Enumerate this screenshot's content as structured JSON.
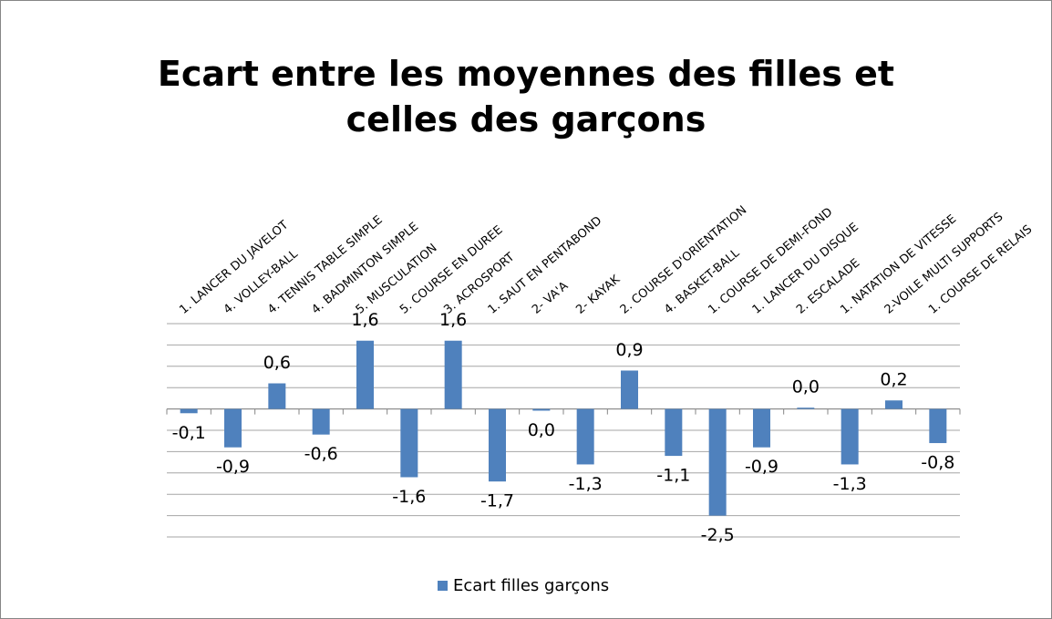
{
  "chart_data": {
    "type": "bar",
    "title": "Ecart entre les moyennes des filles et celles des garçons",
    "categories": [
      "1. LANCER DU JAVELOT",
      "4. VOLLEY-BALL",
      "4. TENNIS TABLE SIMPLE",
      "4. BADMINTON SIMPLE",
      "5. MUSCULATION",
      "5. COURSE EN DUREE",
      "3. ACROSPORT",
      "1. SAUT EN PENTABOND",
      "2- VA'A",
      "2- KAYAK",
      "2. COURSE D'ORIENTATION",
      "4. BASKET-BALL",
      "1. COURSE DE DEMI-FOND",
      "1. LANCER DU DISQUE",
      "2. ESCALADE",
      "1. NATATION DE VITESSE",
      "2-VOILE MULTI SUPPORTS",
      "1. COURSE DE RELAIS"
    ],
    "series": [
      {
        "name": "Ecart filles garçons",
        "color": "#4f81bd",
        "values": [
          -0.1,
          -0.9,
          0.6,
          -0.6,
          1.6,
          -1.6,
          1.6,
          -1.7,
          -0.04,
          -1.3,
          0.9,
          -1.1,
          -2.5,
          -0.9,
          0.03,
          -1.3,
          0.2,
          -0.8
        ],
        "value_labels": [
          "-0,1",
          "-0,9",
          "0,6",
          "-0,6",
          "1,6",
          "-1,6",
          "1,6",
          "-1,7",
          "0,0",
          "-1,3",
          "0,9",
          "-1,1",
          "-2,5",
          "-0,9",
          "0,0",
          "-1,3",
          "0,2",
          "-0,8"
        ]
      }
    ],
    "ylim": [
      -3,
      2
    ],
    "yticks": [
      -3,
      -2.5,
      -2,
      -1.5,
      -1,
      -0.5,
      0,
      0.5,
      1,
      1.5,
      2
    ],
    "grid": true,
    "legend": "bottom"
  }
}
